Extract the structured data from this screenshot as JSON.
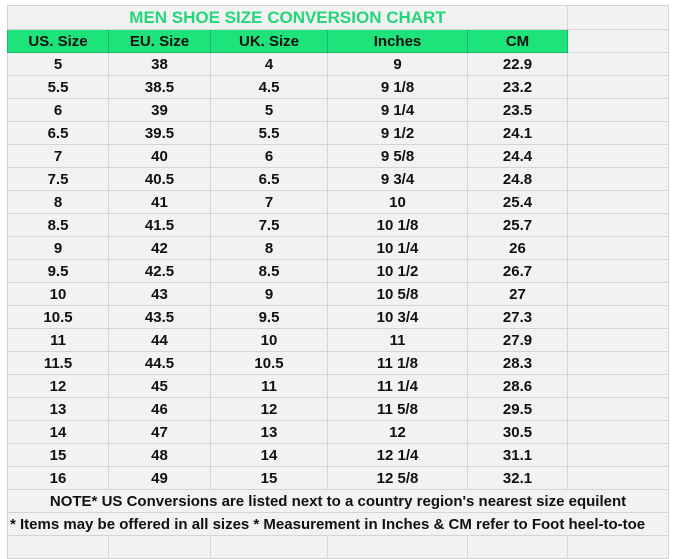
{
  "title": "MEN SHOE SIZE CONVERSION CHART",
  "colors": {
    "header_bg": "#1ee27a",
    "title_text": "#22d67a",
    "cell_bg": "#f2f2f2",
    "grid": "#d4d4d4"
  },
  "columns": [
    "US. Size",
    "EU. Size",
    "UK. Size",
    "Inches",
    "CM"
  ],
  "rows": [
    [
      "5",
      "38",
      "4",
      "9",
      "22.9"
    ],
    [
      "5.5",
      "38.5",
      "4.5",
      "9 1/8",
      "23.2"
    ],
    [
      "6",
      "39",
      "5",
      "9 1/4",
      "23.5"
    ],
    [
      "6.5",
      "39.5",
      "5.5",
      "9 1/2",
      "24.1"
    ],
    [
      "7",
      "40",
      "6",
      "9 5/8",
      "24.4"
    ],
    [
      "7.5",
      "40.5",
      "6.5",
      "9 3/4",
      "24.8"
    ],
    [
      "8",
      "41",
      "7",
      "10",
      "25.4"
    ],
    [
      "8.5",
      "41.5",
      "7.5",
      "10 1/8",
      "25.7"
    ],
    [
      "9",
      "42",
      "8",
      "10 1/4",
      "26"
    ],
    [
      "9.5",
      "42.5",
      "8.5",
      "10 1/2",
      "26.7"
    ],
    [
      "10",
      "43",
      "9",
      "10 5/8",
      "27"
    ],
    [
      "10.5",
      "43.5",
      "9.5",
      "10 3/4",
      "27.3"
    ],
    [
      "11",
      "44",
      "10",
      "11",
      "27.9"
    ],
    [
      "11.5",
      "44.5",
      "10.5",
      "11 1/8",
      "28.3"
    ],
    [
      "12",
      "45",
      "11",
      "11 1/4",
      "28.6"
    ],
    [
      "13",
      "46",
      "12",
      "11 5/8",
      "29.5"
    ],
    [
      "14",
      "47",
      "13",
      "12",
      "30.5"
    ],
    [
      "15",
      "48",
      "14",
      "12 1/4",
      "31.1"
    ],
    [
      "16",
      "49",
      "15",
      "12 5/8",
      "32.1"
    ]
  ],
  "notes": [
    "NOTE* US Conversions are listed next to a country region's nearest size equilent",
    "* Items may be offered in all sizes * Measurement in Inches & CM refer to Foot heel-to-toe"
  ]
}
